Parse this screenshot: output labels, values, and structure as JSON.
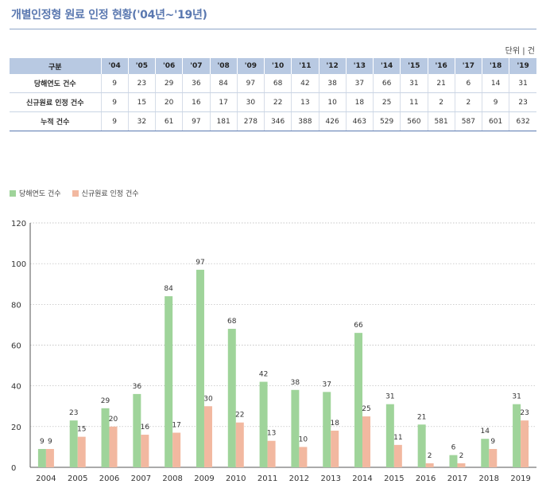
{
  "title": "개별인정형 원료 인정 현황('04년~'19년)",
  "unit": "단위 | 건",
  "table": {
    "headers": [
      "구분",
      "'04",
      "'05",
      "'06",
      "'07",
      "'08",
      "'09",
      "'10",
      "'11",
      "'12",
      "'13",
      "'14",
      "'15",
      "'16",
      "'17",
      "'18",
      "'19"
    ],
    "rows": [
      {
        "label": "당해연도 건수",
        "values": [
          "9",
          "23",
          "29",
          "36",
          "84",
          "97",
          "68",
          "42",
          "38",
          "37",
          "66",
          "31",
          "21",
          "6",
          "14",
          "31"
        ]
      },
      {
        "label": "신규원료 인정 건수",
        "values": [
          "9",
          "15",
          "20",
          "16",
          "17",
          "30",
          "22",
          "13",
          "10",
          "18",
          "25",
          "11",
          "2",
          "2",
          "9",
          "23"
        ]
      },
      {
        "label": "누적 건수",
        "values": [
          "9",
          "32",
          "61",
          "97",
          "181",
          "278",
          "346",
          "388",
          "426",
          "463",
          "529",
          "560",
          "581",
          "587",
          "601",
          "632"
        ]
      }
    ]
  },
  "chart_data": {
    "type": "bar",
    "categories": [
      "2004",
      "2005",
      "2006",
      "2007",
      "2008",
      "2009",
      "2010",
      "2011",
      "2012",
      "2013",
      "2014",
      "2015",
      "2016",
      "2017",
      "2018",
      "2019"
    ],
    "series": [
      {
        "name": "당해연도 건수",
        "color": "#9fd49a",
        "values": [
          9,
          23,
          29,
          36,
          84,
          97,
          68,
          42,
          38,
          37,
          66,
          31,
          21,
          6,
          14,
          31
        ]
      },
      {
        "name": "신규원료 인정 건수",
        "color": "#f2b8a0",
        "values": [
          9,
          15,
          20,
          16,
          17,
          30,
          22,
          13,
          10,
          18,
          25,
          11,
          2,
          2,
          9,
          23
        ]
      }
    ],
    "yticks": [
      "0",
      "20",
      "40",
      "60",
      "80",
      "100",
      "120"
    ],
    "ylim": [
      0,
      120
    ],
    "grid": true,
    "legend_position": "top-left",
    "xlabel": "",
    "ylabel": ""
  }
}
